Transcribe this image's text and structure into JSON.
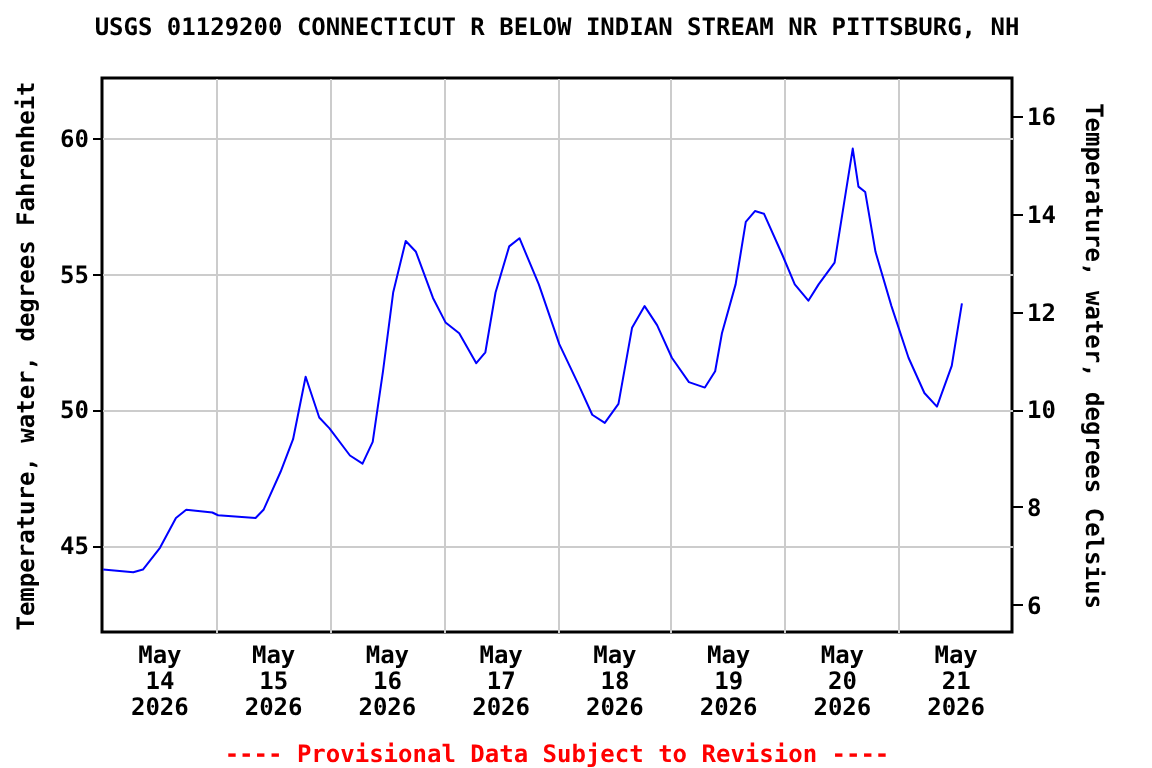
{
  "chart_data": {
    "type": "line",
    "title": "USGS 01129200 CONNECTICUT R BELOW INDIAN STREAM NR PITTSBURG, NH",
    "ylabel": "Temperature, water, degrees Fahrenheit",
    "y2label": "Temperature, water, degrees Celsius",
    "annotations": [
      "---- Provisional Data Subject to Revision ----"
    ],
    "xlim": [
      "2026-05-14T00:00",
      "2026-05-22T00:00"
    ],
    "xticks": [
      {
        "value": "2026-05-14T12:00",
        "label": "May\n14\n2026"
      },
      {
        "value": "2026-05-15T00:00",
        "label": null
      },
      {
        "value": "2026-05-15T12:00",
        "label": "May\n15\n2026"
      },
      {
        "value": "2026-05-16T00:00",
        "label": null
      },
      {
        "value": "2026-05-16T12:00",
        "label": "May\n16\n2026"
      },
      {
        "value": "2026-05-17T00:00",
        "label": null
      },
      {
        "value": "2026-05-17T12:00",
        "label": "May\n17\n2026"
      },
      {
        "value": "2026-05-18T00:00",
        "label": null
      },
      {
        "value": "2026-05-18T12:00",
        "label": "May\n18\n2026"
      },
      {
        "value": "2026-05-19T00:00",
        "label": null
      },
      {
        "value": "2026-05-19T12:00",
        "label": "May\n19\n2026"
      },
      {
        "value": "2026-05-20T00:00",
        "label": null
      },
      {
        "value": "2026-05-20T12:00",
        "label": "May\n20\n2026"
      },
      {
        "value": "2026-05-21T00:00",
        "label": null
      },
      {
        "value": "2026-05-21T12:00",
        "label": "May\n21\n2026"
      }
    ],
    "ylim": [
      41.8,
      62.2
    ],
    "yticks": [
      45,
      50,
      55,
      60
    ],
    "y2lim": [
      5.44,
      16.78
    ],
    "y2ticks": [
      6,
      8,
      10,
      12,
      14,
      16
    ],
    "grid": true,
    "x": [
      "2026-05-14T00:15",
      "2026-05-14T06:36",
      "2026-05-14T08:38",
      "2026-05-14T12:14",
      "2026-05-14T15:36",
      "2026-05-14T17:46",
      "2026-05-14T23:17",
      "2026-05-15T00:29",
      "2026-05-15T08:24",
      "2026-05-15T10:05",
      "2026-05-15T13:41",
      "2026-05-15T16:19",
      "2026-05-15T18:58",
      "2026-05-15T21:50",
      "2026-05-16T00:00",
      "2026-05-16T04:19",
      "2026-05-16T06:58",
      "2026-05-16T09:07",
      "2026-05-16T11:17",
      "2026-05-16T13:26",
      "2026-05-16T16:05",
      "2026-05-16T18:14",
      "2026-05-16T21:50",
      "2026-05-17T00:29",
      "2026-05-17T03:22",
      "2026-05-17T06:58",
      "2026-05-17T08:53",
      "2026-05-17T11:02",
      "2026-05-17T13:55",
      "2026-05-17T16:05",
      "2026-05-17T20:10",
      "2026-05-18T00:29",
      "2026-05-18T04:34",
      "2026-05-18T07:26",
      "2026-05-18T10:05",
      "2026-05-18T12:58",
      "2026-05-18T15:50",
      "2026-05-18T18:29",
      "2026-05-18T21:07",
      "2026-05-19T00:14",
      "2026-05-19T03:50",
      "2026-05-19T07:12",
      "2026-05-19T09:22",
      "2026-05-19T10:48",
      "2026-05-19T13:41",
      "2026-05-19T15:50",
      "2026-05-19T17:46",
      "2026-05-19T19:41",
      "2026-05-19T23:31",
      "2026-05-20T02:10",
      "2026-05-20T05:02",
      "2026-05-20T07:12",
      "2026-05-20T10:34",
      "2026-05-20T12:29",
      "2026-05-20T14:24",
      "2026-05-20T15:36",
      "2026-05-20T17:02",
      "2026-05-20T19:12",
      "2026-05-20T22:34",
      "2026-05-21T02:10",
      "2026-05-21T05:31",
      "2026-05-21T08:10",
      "2026-05-21T11:17",
      "2026-05-21T13:26"
    ],
    "series": [
      {
        "color": "#0000ff",
        "values": [
          44.1,
          44.0,
          44.1,
          44.9,
          46.0,
          46.3,
          46.2,
          46.1,
          46.0,
          46.3,
          47.7,
          48.9,
          51.2,
          49.7,
          49.3,
          48.3,
          48.0,
          48.8,
          51.4,
          54.3,
          56.2,
          55.8,
          54.1,
          53.2,
          52.8,
          51.7,
          52.1,
          54.3,
          56.0,
          56.3,
          54.6,
          52.4,
          50.9,
          49.8,
          49.5,
          50.2,
          53.0,
          53.8,
          53.1,
          51.9,
          51.0,
          50.8,
          51.4,
          52.8,
          54.6,
          56.9,
          57.3,
          57.2,
          55.7,
          54.6,
          54.0,
          54.6,
          55.4,
          57.5,
          59.6,
          58.2,
          58.0,
          55.8,
          53.8,
          51.9,
          50.6,
          50.1,
          51.6,
          53.9
        ]
      }
    ]
  }
}
